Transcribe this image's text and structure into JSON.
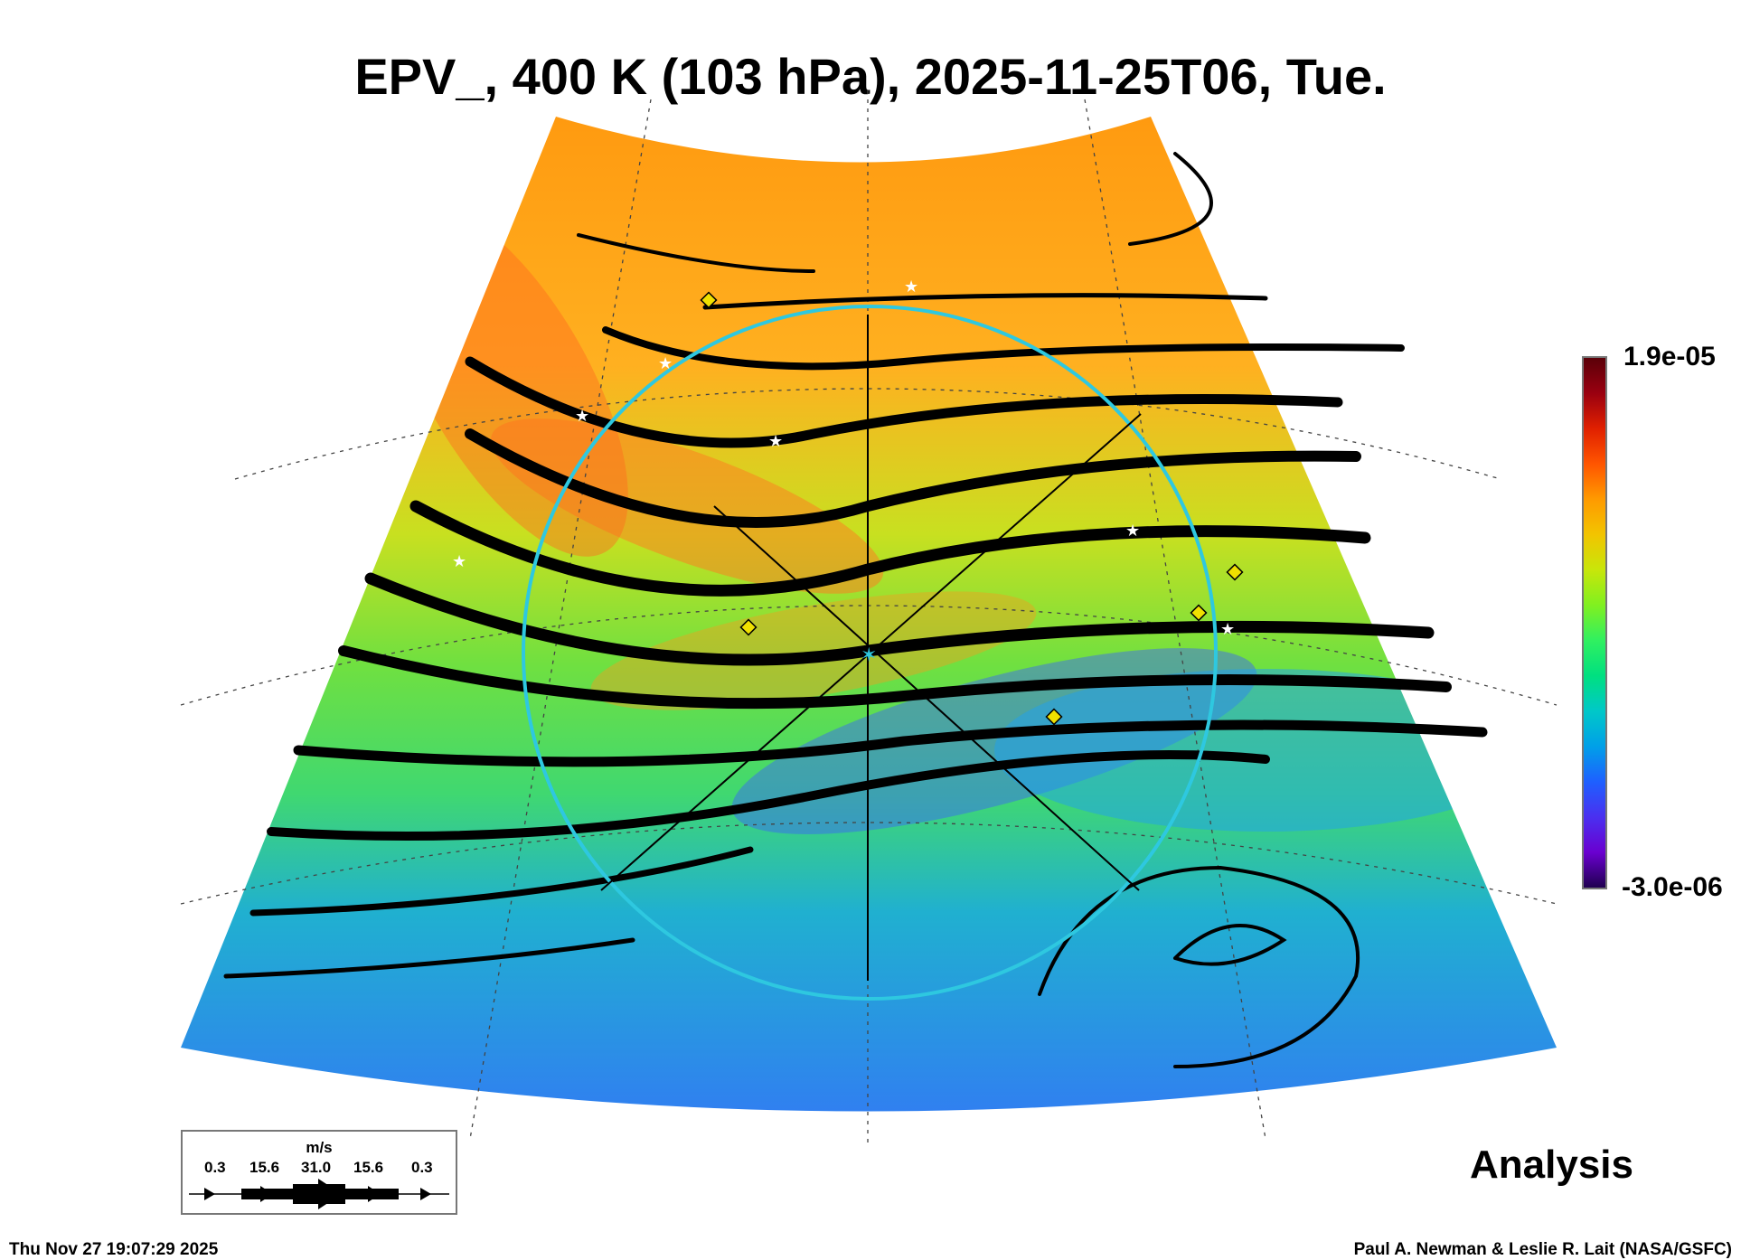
{
  "title": "EPV_, 400 K (103 hPa), 2025-11-25T06, Tue.",
  "colorbar": {
    "max_label": "1.9e-05",
    "min_label": "-3.0e-06"
  },
  "legend": {
    "units": "m/s",
    "values": [
      "0.3",
      "15.6",
      "31.0",
      "15.6",
      "0.3"
    ]
  },
  "label": "Analysis",
  "footer": {
    "timestamp": "Thu Nov 27 19:07:29 2025",
    "credit": "Paul A. Newman & Leslie R. Lait (NASA/GSFC)"
  },
  "colors": {
    "circle": "#2ec8e0",
    "marker_diamond": "#f0e000",
    "high": "#ff9000",
    "mid": "#60e040",
    "low": "#2080ff"
  }
}
